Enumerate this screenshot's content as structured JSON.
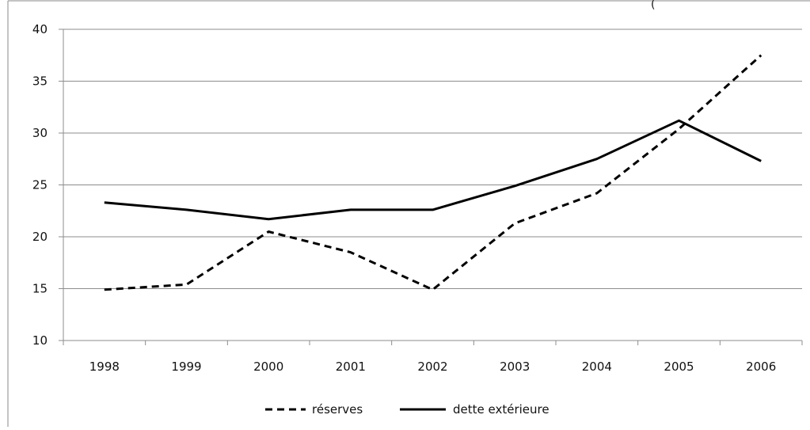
{
  "chart_data": {
    "type": "line",
    "title": "",
    "xlabel": "",
    "ylabel": "",
    "categories": [
      "1998",
      "1999",
      "2000",
      "2001",
      "2002",
      "2003",
      "2004",
      "2005",
      "2006"
    ],
    "series": [
      {
        "name": "réserves",
        "style": "dashed",
        "color": "#000000",
        "values": [
          14.9,
          15.4,
          20.5,
          18.5,
          14.9,
          21.3,
          24.2,
          30.4,
          37.5
        ]
      },
      {
        "name": "dette extérieure",
        "style": "solid",
        "color": "#000000",
        "values": [
          23.3,
          22.6,
          21.7,
          22.6,
          22.6,
          24.9,
          27.5,
          31.2,
          27.3
        ]
      }
    ],
    "ylim": [
      10,
      40
    ],
    "yticks": [
      10,
      15,
      20,
      25,
      30,
      35,
      40
    ],
    "grid": true,
    "legend_position": "bottom",
    "corner_mark": "("
  }
}
